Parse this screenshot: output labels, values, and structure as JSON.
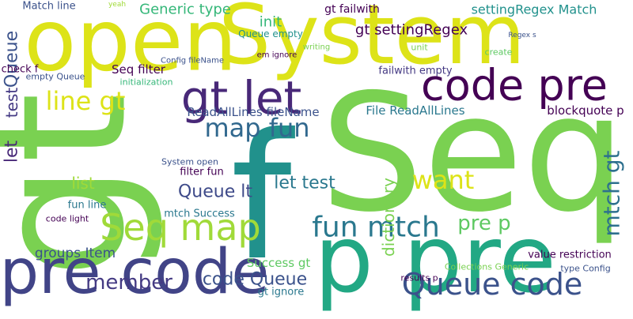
{
  "words": [
    "gt",
    "Seq",
    "open",
    "System",
    "f",
    "p pre",
    "pre code",
    "code pre",
    "gt let",
    "Seq map",
    "fun mtch",
    "Queue code",
    "map fun",
    "line gt",
    "Queue lt",
    "member",
    "code Queue",
    "let test",
    "want",
    "pre p",
    "mtch gt",
    "Queue",
    "test",
    "let",
    "Generic type",
    "gt failwith",
    "gt settingRegex",
    "settingRegex Match",
    "Match line",
    "init",
    "Queue empty",
    "Seq filter",
    "ReadAllLines fileName",
    "File ReadAllLines",
    "blockquote p",
    "dictionary",
    "list",
    "groups Item",
    "Success gt",
    "gt ignore",
    "empty Queue",
    "check f",
    "failwith empty",
    "filter fun",
    "System open",
    "mtch Success",
    "Collections Generic",
    "type Config",
    "code light",
    "fun line",
    "value restriction",
    "results p",
    "initialization",
    "Config fileName",
    "em ignore",
    "unit",
    "create",
    "writing",
    "Regex s",
    "yeah"
  ]
}
